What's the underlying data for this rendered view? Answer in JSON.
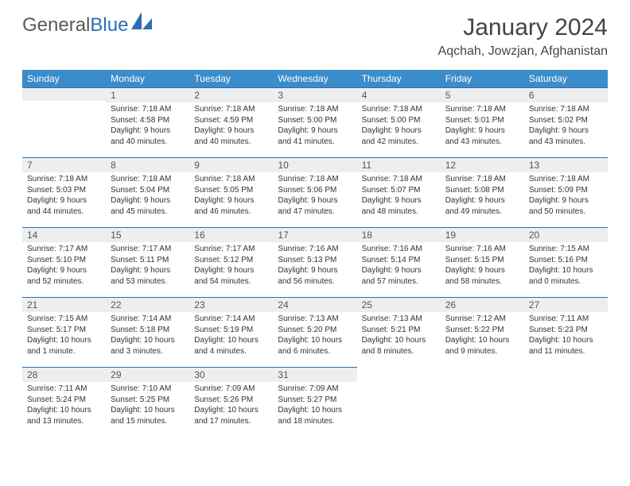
{
  "brand": {
    "part1": "General",
    "part2": "Blue"
  },
  "title": "January 2024",
  "location": "Aqchah, Jowzjan, Afghanistan",
  "colors": {
    "header_bg": "#3b8ccb",
    "header_text": "#ffffff",
    "rule": "#2a6fb5",
    "daynum_bg": "#eceef0",
    "text": "#333333",
    "brand_gray": "#5a5a5a",
    "brand_blue": "#2a6fb5"
  },
  "weekdays": [
    "Sunday",
    "Monday",
    "Tuesday",
    "Wednesday",
    "Thursday",
    "Friday",
    "Saturday"
  ],
  "start_offset": 1,
  "days": [
    {
      "n": "1",
      "sr": "7:18 AM",
      "ss": "4:58 PM",
      "dl": "9 hours and 40 minutes."
    },
    {
      "n": "2",
      "sr": "7:18 AM",
      "ss": "4:59 PM",
      "dl": "9 hours and 40 minutes."
    },
    {
      "n": "3",
      "sr": "7:18 AM",
      "ss": "5:00 PM",
      "dl": "9 hours and 41 minutes."
    },
    {
      "n": "4",
      "sr": "7:18 AM",
      "ss": "5:00 PM",
      "dl": "9 hours and 42 minutes."
    },
    {
      "n": "5",
      "sr": "7:18 AM",
      "ss": "5:01 PM",
      "dl": "9 hours and 43 minutes."
    },
    {
      "n": "6",
      "sr": "7:18 AM",
      "ss": "5:02 PM",
      "dl": "9 hours and 43 minutes."
    },
    {
      "n": "7",
      "sr": "7:18 AM",
      "ss": "5:03 PM",
      "dl": "9 hours and 44 minutes."
    },
    {
      "n": "8",
      "sr": "7:18 AM",
      "ss": "5:04 PM",
      "dl": "9 hours and 45 minutes."
    },
    {
      "n": "9",
      "sr": "7:18 AM",
      "ss": "5:05 PM",
      "dl": "9 hours and 46 minutes."
    },
    {
      "n": "10",
      "sr": "7:18 AM",
      "ss": "5:06 PM",
      "dl": "9 hours and 47 minutes."
    },
    {
      "n": "11",
      "sr": "7:18 AM",
      "ss": "5:07 PM",
      "dl": "9 hours and 48 minutes."
    },
    {
      "n": "12",
      "sr": "7:18 AM",
      "ss": "5:08 PM",
      "dl": "9 hours and 49 minutes."
    },
    {
      "n": "13",
      "sr": "7:18 AM",
      "ss": "5:09 PM",
      "dl": "9 hours and 50 minutes."
    },
    {
      "n": "14",
      "sr": "7:17 AM",
      "ss": "5:10 PM",
      "dl": "9 hours and 52 minutes."
    },
    {
      "n": "15",
      "sr": "7:17 AM",
      "ss": "5:11 PM",
      "dl": "9 hours and 53 minutes."
    },
    {
      "n": "16",
      "sr": "7:17 AM",
      "ss": "5:12 PM",
      "dl": "9 hours and 54 minutes."
    },
    {
      "n": "17",
      "sr": "7:16 AM",
      "ss": "5:13 PM",
      "dl": "9 hours and 56 minutes."
    },
    {
      "n": "18",
      "sr": "7:16 AM",
      "ss": "5:14 PM",
      "dl": "9 hours and 57 minutes."
    },
    {
      "n": "19",
      "sr": "7:16 AM",
      "ss": "5:15 PM",
      "dl": "9 hours and 58 minutes."
    },
    {
      "n": "20",
      "sr": "7:15 AM",
      "ss": "5:16 PM",
      "dl": "10 hours and 0 minutes."
    },
    {
      "n": "21",
      "sr": "7:15 AM",
      "ss": "5:17 PM",
      "dl": "10 hours and 1 minute."
    },
    {
      "n": "22",
      "sr": "7:14 AM",
      "ss": "5:18 PM",
      "dl": "10 hours and 3 minutes."
    },
    {
      "n": "23",
      "sr": "7:14 AM",
      "ss": "5:19 PM",
      "dl": "10 hours and 4 minutes."
    },
    {
      "n": "24",
      "sr": "7:13 AM",
      "ss": "5:20 PM",
      "dl": "10 hours and 6 minutes."
    },
    {
      "n": "25",
      "sr": "7:13 AM",
      "ss": "5:21 PM",
      "dl": "10 hours and 8 minutes."
    },
    {
      "n": "26",
      "sr": "7:12 AM",
      "ss": "5:22 PM",
      "dl": "10 hours and 9 minutes."
    },
    {
      "n": "27",
      "sr": "7:11 AM",
      "ss": "5:23 PM",
      "dl": "10 hours and 11 minutes."
    },
    {
      "n": "28",
      "sr": "7:11 AM",
      "ss": "5:24 PM",
      "dl": "10 hours and 13 minutes."
    },
    {
      "n": "29",
      "sr": "7:10 AM",
      "ss": "5:25 PM",
      "dl": "10 hours and 15 minutes."
    },
    {
      "n": "30",
      "sr": "7:09 AM",
      "ss": "5:26 PM",
      "dl": "10 hours and 17 minutes."
    },
    {
      "n": "31",
      "sr": "7:09 AM",
      "ss": "5:27 PM",
      "dl": "10 hours and 18 minutes."
    }
  ],
  "labels": {
    "sunrise": "Sunrise:",
    "sunset": "Sunset:",
    "daylight": "Daylight:"
  }
}
